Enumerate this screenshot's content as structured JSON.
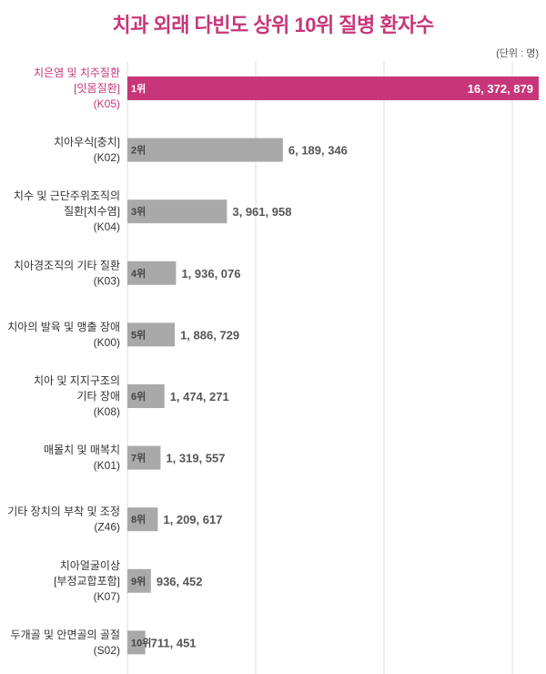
{
  "title": "치과 외래 다빈도 상위 10위 질병 환자수",
  "unit": "(단위 : 명)",
  "colors": {
    "highlight": "#c8367a",
    "bar": "#a9a9a9",
    "grid": "#dddddd"
  },
  "chart_data": {
    "type": "bar",
    "orientation": "horizontal",
    "title": "치과 외래 다빈도 상위 10위 질병 환자수",
    "unit": "(단위 : 명)",
    "grid": true,
    "categories": [
      [
        "치은염 및 치주질환",
        "[잇몸질환]",
        "(K05)"
      ],
      [
        "치아우식[충치]",
        "(K02)"
      ],
      [
        "치수 및 근단주위조직의",
        "질환[치수염]",
        "(K04)"
      ],
      [
        "치아경조직의 기타 질환",
        "(K03)"
      ],
      [
        "치아의 발육 및 맹출 장애",
        "(K00)"
      ],
      [
        "치아 및 지지구조의",
        "기타 장애",
        "(K08)"
      ],
      [
        "매몰치 및 매복치",
        "(K01)"
      ],
      [
        "기타 장치의 부착 및 조정",
        "(Z46)"
      ],
      [
        "치아얼굴이상",
        "[부정교합포함]",
        "(K07)"
      ],
      [
        "두개골 및 안면골의 골절",
        "(S02)"
      ]
    ],
    "ranks": [
      "1위",
      "2위",
      "3위",
      "4위",
      "5위",
      "6위",
      "7위",
      "8위",
      "9위",
      "10위"
    ],
    "values": [
      16372879,
      6189346,
      3961958,
      1936076,
      1886729,
      1474271,
      1319557,
      1209617,
      936452,
      711451
    ],
    "value_labels": [
      "16, 372, 879",
      "6, 189, 346",
      "3, 961, 958",
      "1, 936, 076",
      "1, 886, 729",
      "1, 474, 271",
      "1, 319, 557",
      "1, 209, 617",
      "936, 452",
      "711, 451"
    ],
    "highlight_index": 0
  }
}
